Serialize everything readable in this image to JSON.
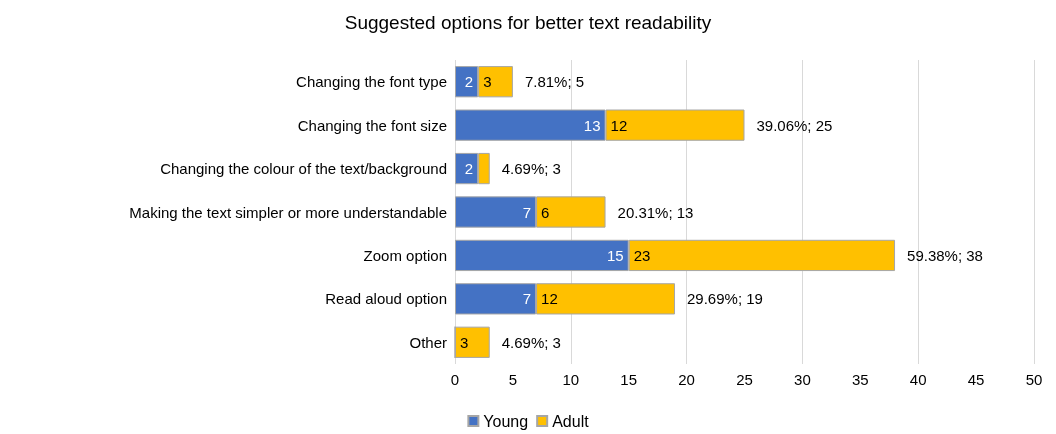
{
  "chart_data": {
    "type": "bar",
    "orientation": "horizontal",
    "stacked": true,
    "title": "Suggested options for better text readability",
    "categories": [
      "Changing the font type",
      "Changing the font size",
      "Changing the colour of the text/background",
      "Making the text simpler or more understandable",
      "Zoom option",
      "Read aloud option",
      "Other"
    ],
    "series": [
      {
        "name": "Young",
        "color": "#4472c4",
        "values": [
          2,
          13,
          2,
          7,
          15,
          7,
          0
        ],
        "value_labels": [
          "2",
          "13",
          "2",
          "7",
          "15",
          "7",
          null
        ]
      },
      {
        "name": "Adult",
        "color": "#ffc000",
        "values": [
          3,
          12,
          1,
          6,
          23,
          12,
          3
        ],
        "value_labels": [
          "3",
          "12",
          null,
          "6",
          "23",
          "12",
          "3"
        ]
      }
    ],
    "totals": [
      "7.81%; 5",
      "39.06%; 25",
      "4.69%; 3",
      "20.31%; 13",
      "59.38%; 38",
      "29.69%; 19",
      "4.69%; 3"
    ],
    "xlim": [
      0,
      50
    ],
    "xticks": [
      0,
      5,
      10,
      15,
      20,
      25,
      30,
      35,
      40,
      45,
      50
    ],
    "grid": "x",
    "legend": "bottom"
  }
}
